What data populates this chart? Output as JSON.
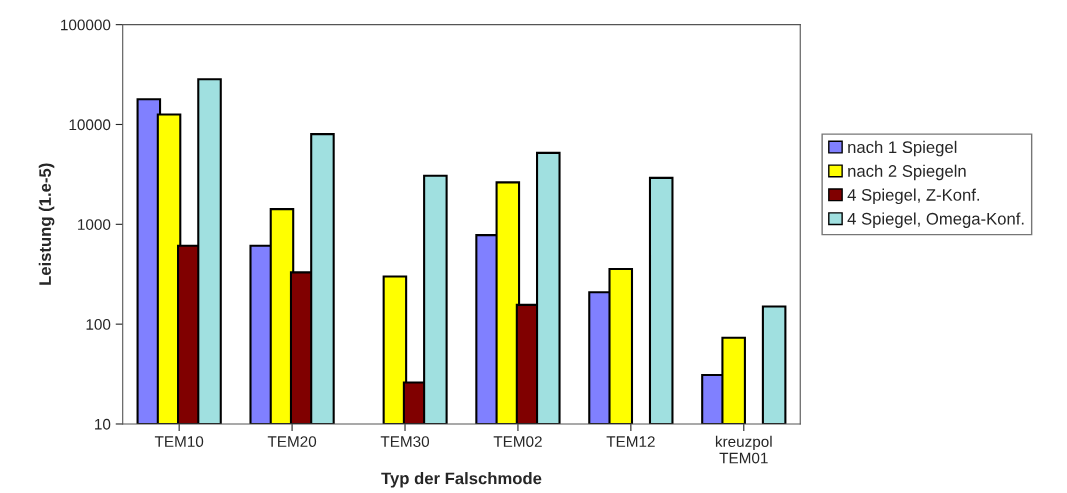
{
  "chart_data": {
    "type": "bar",
    "xlabel": "Typ der Falschmode",
    "ylabel": "Leistung (1.e-5)",
    "categories": [
      "TEM10",
      "TEM20",
      "TEM30",
      "TEM02",
      "TEM12",
      "kreuzpol\nTEM01"
    ],
    "series": [
      {
        "name": "nach 1 Spiegel",
        "color": "#8080ff",
        "values": [
          17900,
          610,
          null,
          780,
          209,
          31
        ]
      },
      {
        "name": "nach 2 Spiegeln",
        "color": "#ffff00",
        "values": [
          12600,
          1420,
          300,
          2630,
          357,
          73
        ]
      },
      {
        "name": "4 Spiegel, Z-Konf.",
        "color": "#800000",
        "values": [
          610,
          330,
          26,
          156,
          null,
          null
        ]
      },
      {
        "name": "4 Spiegel, Omega-Konf.",
        "color": "#a0e0e0",
        "values": [
          28400,
          8000,
          3060,
          5200,
          2920,
          150
        ]
      }
    ],
    "log": true,
    "ylim": [
      10,
      100000
    ],
    "yticks": [
      10,
      100,
      1000,
      10000,
      100000
    ],
    "grid": false,
    "legend": "right"
  }
}
